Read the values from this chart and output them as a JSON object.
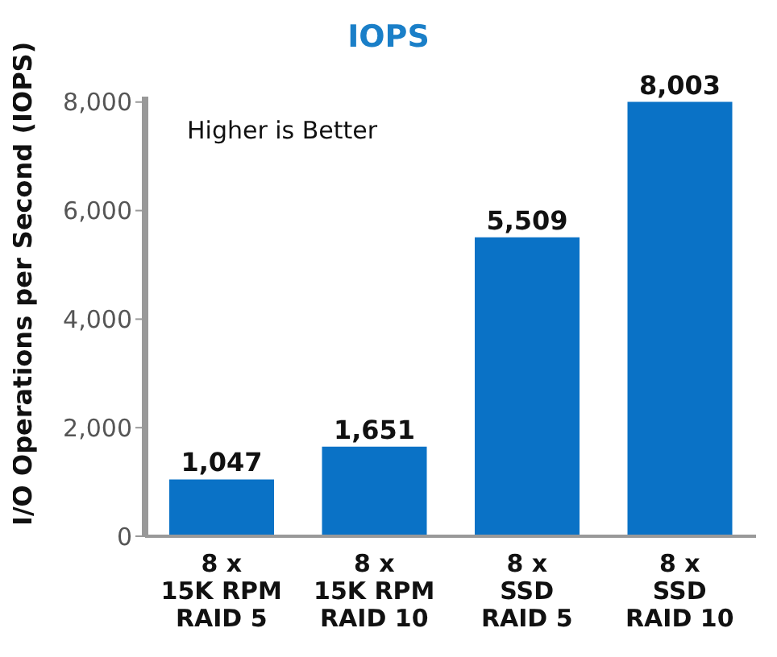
{
  "chart_data": {
    "type": "bar",
    "title": "IOPS",
    "ylabel": "I/O Operations per Second (IOPS)",
    "categories": [
      "8 x\n15K RPM\nRAID 5",
      "8 x\n15K RPM\nRAID 10",
      "8 x\nSSD\nRAID 5",
      "8 x\nSSD\nRAID 10"
    ],
    "values": [
      1047,
      1651,
      5509,
      8003
    ],
    "color": "#0a72c6",
    "value_labels": [
      "1,047",
      "1,651",
      "5,509",
      "8,003"
    ],
    "ylim": [
      0,
      8100
    ],
    "yticks": [
      {
        "value": 0,
        "label": "0"
      },
      {
        "value": 2000,
        "label": "2,000"
      },
      {
        "value": 4000,
        "label": "4,000"
      },
      {
        "value": 6000,
        "label": "6,000"
      },
      {
        "value": 8000,
        "label": "8,000"
      }
    ],
    "annotations": [
      "Higher is Better"
    ],
    "grid": false,
    "legend": false
  }
}
